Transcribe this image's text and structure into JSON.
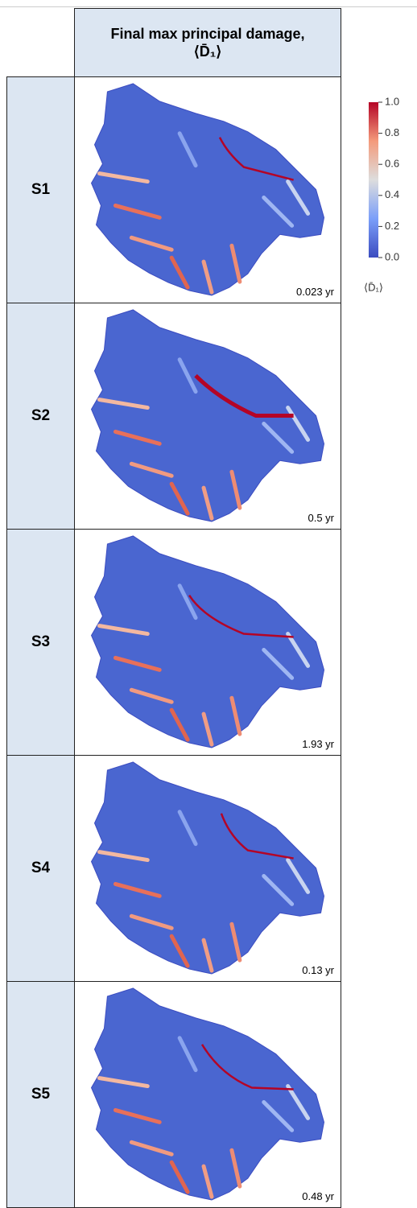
{
  "header": {
    "title": "Final max principal damage, ⟨D̄₁⟩"
  },
  "rows": [
    {
      "label": "S1",
      "time": "0.023 yr"
    },
    {
      "label": "S2",
      "time": "0.5 yr"
    },
    {
      "label": "S3",
      "time": "1.93 yr"
    },
    {
      "label": "S4",
      "time": "0.13 yr"
    },
    {
      "label": "S5",
      "time": "0.48 yr"
    }
  ],
  "colorbar": {
    "label": "⟨D̄₁⟩",
    "range": [
      0,
      1
    ],
    "ticks": [
      {
        "value": 0,
        "label": "0.0"
      },
      {
        "value": 0.2,
        "label": "0.2"
      },
      {
        "value": 0.4,
        "label": "0.4"
      },
      {
        "value": 0.6,
        "label": "0.6"
      },
      {
        "value": 0.8,
        "label": "0.8"
      },
      {
        "value": 1,
        "label": "1.0"
      }
    ]
  }
}
